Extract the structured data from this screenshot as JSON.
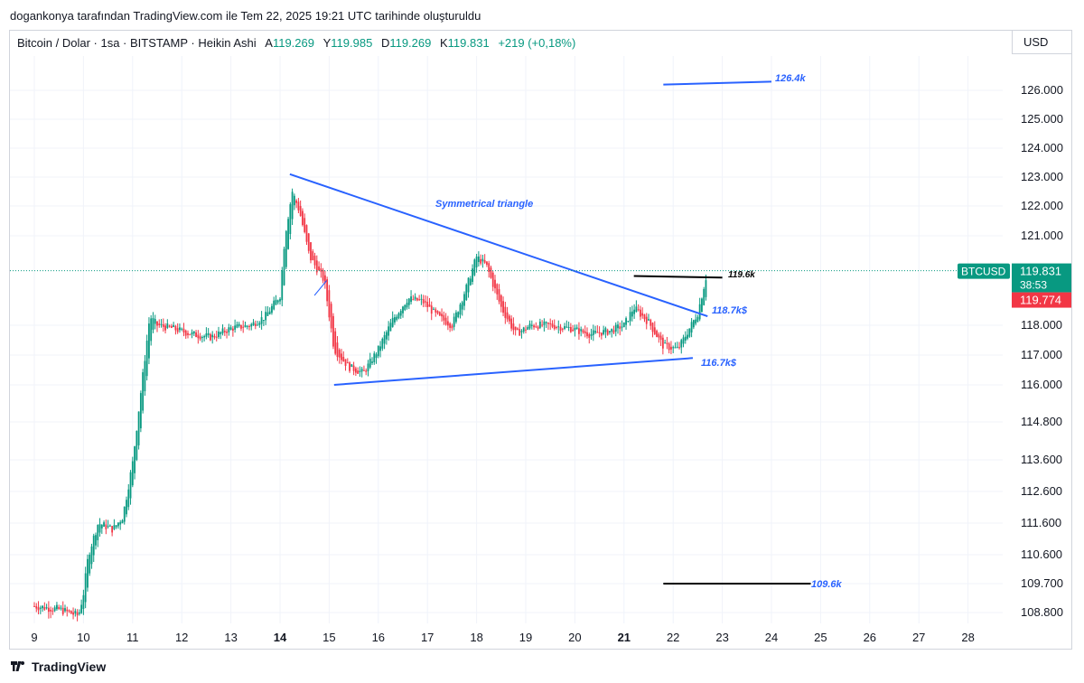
{
  "header": {
    "attribution": "dogankonya tarafından TradingView.com ile Tem 22, 2025 19:21 UTC tarihinde oluşturuldu"
  },
  "legend": {
    "symbol": "Bitcoin / Dolar · 1sa · BITSTAMP · Heikin Ashi",
    "open_label": "A",
    "open": "119.269",
    "high_label": "Y",
    "high": "119.985",
    "low_label": "D",
    "low": "119.269",
    "close_label": "K",
    "close": "119.831",
    "change": "+219 (+0,18%)"
  },
  "currency": "USD",
  "footer": {
    "brand": "TradingView"
  },
  "colors": {
    "up": "#089981",
    "down": "#f23645",
    "drawing": "#2962ff",
    "black": "#000000",
    "grid": "#f0f3fa"
  },
  "chart_data": {
    "type": "candlestick",
    "title": "Bitcoin / Dolar · 1sa · BITSTAMP · Heikin Ashi",
    "ylim": [
      108300,
      127000
    ],
    "y_ticks": [
      "126.000",
      "125.000",
      "124.000",
      "123.000",
      "122.000",
      "121.000",
      "118.000",
      "117.000",
      "116.000",
      "114.800",
      "113.600",
      "112.600",
      "111.600",
      "110.600",
      "109.700",
      "108.800"
    ],
    "x_ticks": [
      {
        "label": "9",
        "bold": false
      },
      {
        "label": "10",
        "bold": false
      },
      {
        "label": "11",
        "bold": false
      },
      {
        "label": "12",
        "bold": false
      },
      {
        "label": "13",
        "bold": false
      },
      {
        "label": "14",
        "bold": true
      },
      {
        "label": "15",
        "bold": false
      },
      {
        "label": "16",
        "bold": false
      },
      {
        "label": "17",
        "bold": false
      },
      {
        "label": "18",
        "bold": false
      },
      {
        "label": "19",
        "bold": false
      },
      {
        "label": "20",
        "bold": false
      },
      {
        "label": "21",
        "bold": true
      },
      {
        "label": "22",
        "bold": false
      },
      {
        "label": "23",
        "bold": false
      },
      {
        "label": "24",
        "bold": false
      },
      {
        "label": "25",
        "bold": false
      },
      {
        "label": "26",
        "bold": false
      },
      {
        "label": "27",
        "bold": false
      },
      {
        "label": "28",
        "bold": false
      }
    ],
    "price_path": [
      [
        9.0,
        109000
      ],
      [
        9.5,
        108900
      ],
      [
        9.9,
        108700
      ],
      [
        10.0,
        109400
      ],
      [
        10.1,
        110600
      ],
      [
        10.3,
        111600
      ],
      [
        10.6,
        111400
      ],
      [
        10.8,
        111800
      ],
      [
        11.0,
        113500
      ],
      [
        11.2,
        116200
      ],
      [
        11.35,
        118300
      ],
      [
        11.5,
        118000
      ],
      [
        11.8,
        117900
      ],
      [
        12.2,
        117700
      ],
      [
        12.6,
        117600
      ],
      [
        13.0,
        117900
      ],
      [
        13.4,
        118000
      ],
      [
        13.7,
        118300
      ],
      [
        14.0,
        119000
      ],
      [
        14.1,
        121000
      ],
      [
        14.25,
        122500
      ],
      [
        14.4,
        121800
      ],
      [
        14.6,
        120300
      ],
      [
        14.9,
        119500
      ],
      [
        15.1,
        117200
      ],
      [
        15.4,
        116600
      ],
      [
        15.7,
        116400
      ],
      [
        16.0,
        117200
      ],
      [
        16.3,
        118200
      ],
      [
        16.6,
        118900
      ],
      [
        16.9,
        118800
      ],
      [
        17.2,
        118300
      ],
      [
        17.5,
        118000
      ],
      [
        17.8,
        119300
      ],
      [
        18.0,
        120300
      ],
      [
        18.2,
        120000
      ],
      [
        18.5,
        118600
      ],
      [
        18.8,
        117700
      ],
      [
        19.1,
        118000
      ],
      [
        19.5,
        118000
      ],
      [
        19.9,
        117900
      ],
      [
        20.3,
        117700
      ],
      [
        20.7,
        117800
      ],
      [
        21.0,
        118000
      ],
      [
        21.2,
        118600
      ],
      [
        21.5,
        118100
      ],
      [
        21.8,
        117300
      ],
      [
        22.1,
        117200
      ],
      [
        22.3,
        117800
      ],
      [
        22.5,
        118400
      ],
      [
        22.7,
        119831
      ]
    ],
    "last_price": "119.831",
    "countdown": "38:53",
    "marker_price": "119.774",
    "symbol_tag": "BTCUSD",
    "annotations": {
      "triangle": "Symmetrical triangle",
      "target_up": "126.4k",
      "resistance": "119.6k",
      "upper_line": "118.7k$",
      "lower_line": "116.7k$",
      "target_down": "109.6k"
    },
    "trendlines": {
      "upper": {
        "from": [
          14.2,
          123100
        ],
        "to": [
          22.7,
          118300
        ]
      },
      "lower": {
        "from": [
          15.1,
          116000
        ],
        "to": [
          22.4,
          116900
        ]
      },
      "resistance": {
        "from": [
          21.2,
          119650
        ],
        "to": [
          23.0,
          119600
        ]
      },
      "target_up": {
        "from": [
          21.8,
          126200
        ],
        "to": [
          24.0,
          126300
        ]
      },
      "target_down": {
        "from": [
          21.8,
          109700
        ],
        "to": [
          24.8,
          109700
        ]
      }
    }
  }
}
